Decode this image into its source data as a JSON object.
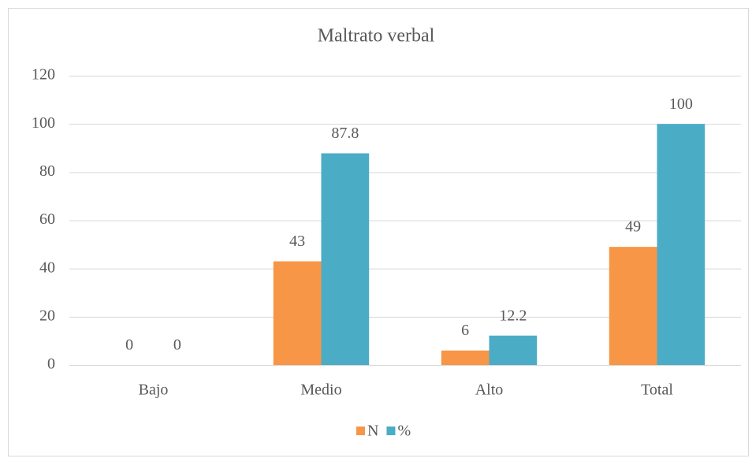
{
  "chart_data": {
    "type": "bar",
    "title": "Maltrato verbal",
    "categories": [
      "Bajo",
      "Medio",
      "Alto",
      "Total"
    ],
    "series": [
      {
        "name": "N",
        "color": "#f79646",
        "values": [
          0,
          43,
          6,
          49
        ]
      },
      {
        "name": "%",
        "color": "#4bacc6",
        "values": [
          0,
          87.8,
          12.2,
          100
        ]
      }
    ],
    "ylim": [
      0,
      120
    ],
    "yticks": [
      0,
      20,
      40,
      60,
      80,
      100,
      120
    ],
    "grid": true,
    "legend": "bottom"
  }
}
